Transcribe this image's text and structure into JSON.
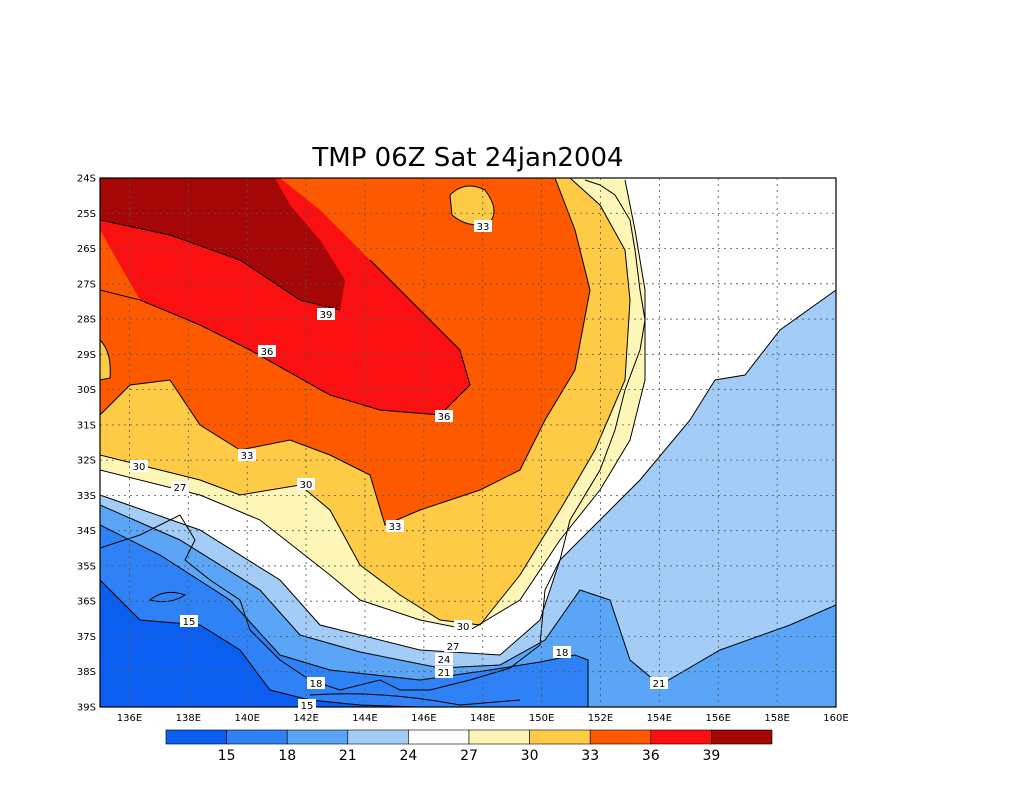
{
  "title": "TMP 06Z Sat 24jan2004",
  "lat_labels": [
    "24S",
    "25S",
    "26S",
    "27S",
    "28S",
    "29S",
    "30S",
    "31S",
    "32S",
    "33S",
    "34S",
    "35S",
    "36S",
    "37S",
    "38S",
    "39S"
  ],
  "lon_labels": [
    "136E",
    "138E",
    "140E",
    "142E",
    "144E",
    "146E",
    "148E",
    "150E",
    "152E",
    "154E",
    "156E",
    "158E",
    "160E"
  ],
  "colorbar": {
    "labels": [
      "15",
      "18",
      "21",
      "24",
      "27",
      "30",
      "33",
      "36",
      "39"
    ],
    "colors": [
      "#0a5ff0",
      "#2e82f5",
      "#5aa5f5",
      "#a3cdf7",
      "#ffffff",
      "#fdf6b6",
      "#fdcb46",
      "#fd5a00",
      "#fa1010",
      "#a50606"
    ]
  },
  "contour_labels": [
    "33",
    "39",
    "36",
    "36",
    "33",
    "30",
    "30",
    "33",
    "27",
    "27",
    "30",
    "24",
    "21",
    "15",
    "18",
    "18",
    "15",
    "21"
  ]
}
